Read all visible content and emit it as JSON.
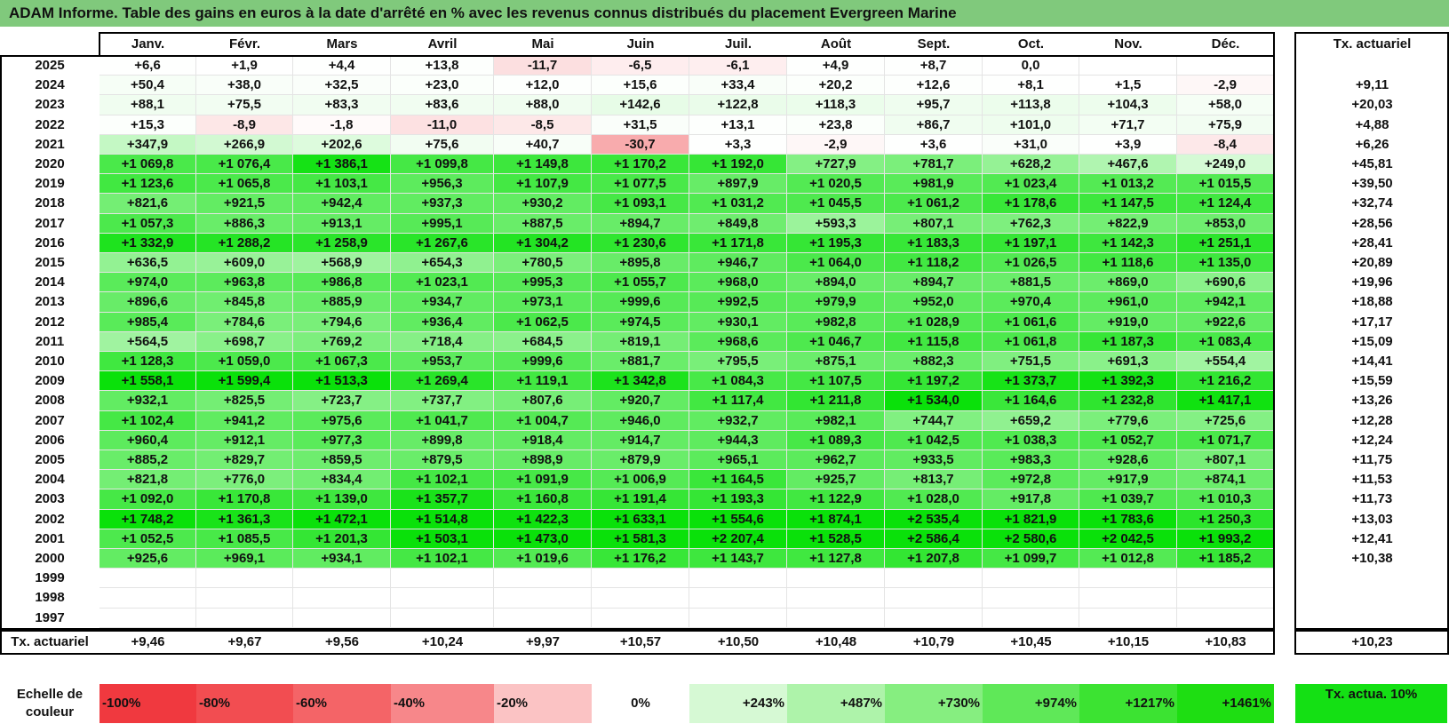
{
  "title": "ADAM Informe. Table des gains en euros à la date d'arrêté en % avec les revenus connus distribués du placement Evergreen Marine",
  "months": [
    "Janv.",
    "Févr.",
    "Mars",
    "Avril",
    "Mai",
    "Juin",
    "Juil.",
    "Août",
    "Sept.",
    "Oct.",
    "Nov.",
    "Déc."
  ],
  "rate_header": "Tx. actuariel",
  "rows": [
    {
      "year": "2025",
      "values": [
        "+6,6",
        "+1,9",
        "+4,4",
        "+13,8",
        "-11,7",
        "-6,5",
        "-6,1",
        "+4,9",
        "+8,7",
        "0,0",
        "",
        ""
      ],
      "rate": ""
    },
    {
      "year": "2024",
      "values": [
        "+50,4",
        "+38,0",
        "+32,5",
        "+23,0",
        "+12,0",
        "+15,6",
        "+33,4",
        "+20,2",
        "+12,6",
        "+8,1",
        "+1,5",
        "-2,9"
      ],
      "rate": "+9,11"
    },
    {
      "year": "2023",
      "values": [
        "+88,1",
        "+75,5",
        "+83,3",
        "+83,6",
        "+88,0",
        "+142,6",
        "+122,8",
        "+118,3",
        "+95,7",
        "+113,8",
        "+104,3",
        "+58,0"
      ],
      "rate": "+20,03"
    },
    {
      "year": "2022",
      "values": [
        "+15,3",
        "-8,9",
        "-1,8",
        "-11,0",
        "-8,5",
        "+31,5",
        "+13,1",
        "+23,8",
        "+86,7",
        "+101,0",
        "+71,7",
        "+75,9"
      ],
      "rate": "+4,88"
    },
    {
      "year": "2021",
      "values": [
        "+347,9",
        "+266,9",
        "+202,6",
        "+75,6",
        "+40,7",
        "-30,7",
        "+3,3",
        "-2,9",
        "+3,6",
        "+31,0",
        "+3,9",
        "-8,4"
      ],
      "rate": "+6,26"
    },
    {
      "year": "2020",
      "values": [
        "+1 069,8",
        "+1 076,4",
        "+1 386,1",
        "+1 099,8",
        "+1 149,8",
        "+1 170,2",
        "+1 192,0",
        "+727,9",
        "+781,7",
        "+628,2",
        "+467,6",
        "+249,0"
      ],
      "rate": "+45,81"
    },
    {
      "year": "2019",
      "values": [
        "+1 123,6",
        "+1 065,8",
        "+1 103,1",
        "+956,3",
        "+1 107,9",
        "+1 077,5",
        "+897,9",
        "+1 020,5",
        "+981,9",
        "+1 023,4",
        "+1 013,2",
        "+1 015,5"
      ],
      "rate": "+39,50"
    },
    {
      "year": "2018",
      "values": [
        "+821,6",
        "+921,5",
        "+942,4",
        "+937,3",
        "+930,2",
        "+1 093,1",
        "+1 031,2",
        "+1 045,5",
        "+1 061,2",
        "+1 178,6",
        "+1 147,5",
        "+1 124,4"
      ],
      "rate": "+32,74"
    },
    {
      "year": "2017",
      "values": [
        "+1 057,3",
        "+886,3",
        "+913,1",
        "+995,1",
        "+887,5",
        "+894,7",
        "+849,8",
        "+593,3",
        "+807,1",
        "+762,3",
        "+822,9",
        "+853,0"
      ],
      "rate": "+28,56"
    },
    {
      "year": "2016",
      "values": [
        "+1 332,9",
        "+1 288,2",
        "+1 258,9",
        "+1 267,6",
        "+1 304,2",
        "+1 230,6",
        "+1 171,8",
        "+1 195,3",
        "+1 183,3",
        "+1 197,1",
        "+1 142,3",
        "+1 251,1"
      ],
      "rate": "+28,41"
    },
    {
      "year": "2015",
      "values": [
        "+636,5",
        "+609,0",
        "+568,9",
        "+654,3",
        "+780,5",
        "+895,8",
        "+946,7",
        "+1 064,0",
        "+1 118,2",
        "+1 026,5",
        "+1 118,6",
        "+1 135,0"
      ],
      "rate": "+20,89"
    },
    {
      "year": "2014",
      "values": [
        "+974,0",
        "+963,8",
        "+986,8",
        "+1 023,1",
        "+995,3",
        "+1 055,7",
        "+968,0",
        "+894,0",
        "+894,7",
        "+881,5",
        "+869,0",
        "+690,6"
      ],
      "rate": "+19,96"
    },
    {
      "year": "2013",
      "values": [
        "+896,6",
        "+845,8",
        "+885,9",
        "+934,7",
        "+973,1",
        "+999,6",
        "+992,5",
        "+979,9",
        "+952,0",
        "+970,4",
        "+961,0",
        "+942,1"
      ],
      "rate": "+18,88"
    },
    {
      "year": "2012",
      "values": [
        "+985,4",
        "+784,6",
        "+794,6",
        "+936,4",
        "+1 062,5",
        "+974,5",
        "+930,1",
        "+982,8",
        "+1 028,9",
        "+1 061,6",
        "+919,0",
        "+922,6"
      ],
      "rate": "+17,17"
    },
    {
      "year": "2011",
      "values": [
        "+564,5",
        "+698,7",
        "+769,2",
        "+718,4",
        "+684,5",
        "+819,1",
        "+968,6",
        "+1 046,7",
        "+1 115,8",
        "+1 061,8",
        "+1 187,3",
        "+1 083,4"
      ],
      "rate": "+15,09"
    },
    {
      "year": "2010",
      "values": [
        "+1 128,3",
        "+1 059,0",
        "+1 067,3",
        "+953,7",
        "+999,6",
        "+881,7",
        "+795,5",
        "+875,1",
        "+882,3",
        "+751,5",
        "+691,3",
        "+554,4"
      ],
      "rate": "+14,41"
    },
    {
      "year": "2009",
      "values": [
        "+1 558,1",
        "+1 599,4",
        "+1 513,3",
        "+1 269,4",
        "+1 119,1",
        "+1 342,8",
        "+1 084,3",
        "+1 107,5",
        "+1 197,2",
        "+1 373,7",
        "+1 392,3",
        "+1 216,2"
      ],
      "rate": "+15,59"
    },
    {
      "year": "2008",
      "values": [
        "+932,1",
        "+825,5",
        "+723,7",
        "+737,7",
        "+807,6",
        "+920,7",
        "+1 117,4",
        "+1 211,8",
        "+1 534,0",
        "+1 164,6",
        "+1 232,8",
        "+1 417,1"
      ],
      "rate": "+13,26"
    },
    {
      "year": "2007",
      "values": [
        "+1 102,4",
        "+941,2",
        "+975,6",
        "+1 041,7",
        "+1 004,7",
        "+946,0",
        "+932,7",
        "+982,1",
        "+744,7",
        "+659,2",
        "+779,6",
        "+725,6"
      ],
      "rate": "+12,28"
    },
    {
      "year": "2006",
      "values": [
        "+960,4",
        "+912,1",
        "+977,3",
        "+899,8",
        "+918,4",
        "+914,7",
        "+944,3",
        "+1 089,3",
        "+1 042,5",
        "+1 038,3",
        "+1 052,7",
        "+1 071,7"
      ],
      "rate": "+12,24"
    },
    {
      "year": "2005",
      "values": [
        "+885,2",
        "+829,7",
        "+859,5",
        "+879,5",
        "+898,9",
        "+879,9",
        "+965,1",
        "+962,7",
        "+933,5",
        "+983,3",
        "+928,6",
        "+807,1"
      ],
      "rate": "+11,75"
    },
    {
      "year": "2004",
      "values": [
        "+821,8",
        "+776,0",
        "+834,4",
        "+1 102,1",
        "+1 091,9",
        "+1 006,9",
        "+1 164,5",
        "+925,7",
        "+813,7",
        "+972,8",
        "+917,9",
        "+874,1"
      ],
      "rate": "+11,53"
    },
    {
      "year": "2003",
      "values": [
        "+1 092,0",
        "+1 170,8",
        "+1 139,0",
        "+1 357,7",
        "+1 160,8",
        "+1 191,4",
        "+1 193,3",
        "+1 122,9",
        "+1 028,0",
        "+917,8",
        "+1 039,7",
        "+1 010,3"
      ],
      "rate": "+11,73"
    },
    {
      "year": "2002",
      "values": [
        "+1 748,2",
        "+1 361,3",
        "+1 472,1",
        "+1 514,8",
        "+1 422,3",
        "+1 633,1",
        "+1 554,6",
        "+1 874,1",
        "+2 535,4",
        "+1 821,9",
        "+1 783,6",
        "+1 250,3"
      ],
      "rate": "+13,03"
    },
    {
      "year": "2001",
      "values": [
        "+1 052,5",
        "+1 085,5",
        "+1 201,3",
        "+1 503,1",
        "+1 473,0",
        "+1 581,3",
        "+2 207,4",
        "+1 528,5",
        "+2 586,4",
        "+2 580,6",
        "+2 042,5",
        "+1 993,2"
      ],
      "rate": "+12,41"
    },
    {
      "year": "2000",
      "values": [
        "+925,6",
        "+969,1",
        "+934,1",
        "+1 102,1",
        "+1 019,6",
        "+1 176,2",
        "+1 143,7",
        "+1 127,8",
        "+1 207,8",
        "+1 099,7",
        "+1 012,8",
        "+1 185,2"
      ],
      "rate": "+10,38"
    },
    {
      "year": "1999",
      "values": [
        "",
        "",
        "",
        "",
        "",
        "",
        "",
        "",
        "",
        "",
        "",
        ""
      ],
      "rate": ""
    },
    {
      "year": "1998",
      "values": [
        "",
        "",
        "",
        "",
        "",
        "",
        "",
        "",
        "",
        "",
        "",
        ""
      ],
      "rate": ""
    },
    {
      "year": "1997",
      "values": [
        "",
        "",
        "",
        "",
        "",
        "",
        "",
        "",
        "",
        "",
        "",
        ""
      ],
      "rate": ""
    }
  ],
  "summary": {
    "label": "Tx. actuariel",
    "values": [
      "+9,46",
      "+9,67",
      "+9,56",
      "+10,24",
      "+9,97",
      "+10,57",
      "+10,50",
      "+10,48",
      "+10,79",
      "+10,45",
      "+10,15",
      "+10,83"
    ],
    "total": "+10,23"
  },
  "legend": {
    "label": "Echelle de couleur",
    "items": [
      {
        "text": "-100%",
        "color": "#f0393f"
      },
      {
        "text": "-80%",
        "color": "#f24d51"
      },
      {
        "text": "-60%",
        "color": "#f46467"
      },
      {
        "text": "-40%",
        "color": "#f7878a"
      },
      {
        "text": "-20%",
        "color": "#fbc3c4"
      },
      {
        "text": "0%",
        "color": "#ffffff"
      },
      {
        "text": "+243%",
        "color": "#d6f9d4"
      },
      {
        "text": "+487%",
        "color": "#aef3aa"
      },
      {
        "text": "+730%",
        "color": "#86ee80"
      },
      {
        "text": "+974%",
        "color": "#5fe858"
      },
      {
        "text": "+1217%",
        "color": "#3ce332"
      },
      {
        "text": "+1461%",
        "color": "#1ede12"
      }
    ],
    "rate_label": "Tx. actua. 10%",
    "rate_color": "#14e014"
  }
}
